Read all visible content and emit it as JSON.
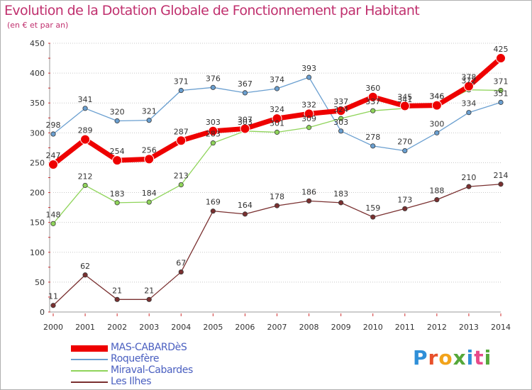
{
  "title": "Evolution de la Dotation Globale de Fonctionnement par Habitant",
  "subtitle": "(en € et par an)",
  "brand": {
    "text": "Proxiti",
    "colors": [
      "#2f8fd8",
      "#e8502a",
      "#f2a31a",
      "#55a83a",
      "#2f8fd8",
      "#e84a8a",
      "#55a83a"
    ]
  },
  "chart_data": {
    "type": "line",
    "title": "Evolution de la Dotation Globale de Fonctionnement par Habitant",
    "subtitle": "(en € et par an)",
    "x": [
      "2000",
      "2001",
      "2002",
      "2003",
      "2004",
      "2005",
      "2006",
      "2007",
      "2008",
      "2009",
      "2010",
      "2011",
      "2012",
      "2013",
      "2014"
    ],
    "ylim": [
      0,
      450
    ],
    "yticks": [
      0,
      50,
      100,
      150,
      200,
      250,
      300,
      350,
      400,
      450
    ],
    "grid": "horizontal dotted",
    "series": [
      {
        "name": "Roquefère",
        "color": "#6a9fd0",
        "emphasis": false,
        "values": [
          298,
          341,
          320,
          321,
          371,
          376,
          367,
          374,
          393,
          303,
          278,
          270,
          300,
          334,
          351
        ]
      },
      {
        "name": "Miraval-Cabardes",
        "color": "#8fd45a",
        "emphasis": false,
        "values": [
          148,
          212,
          183,
          184,
          213,
          283,
          303,
          301,
          309,
          324,
          337,
          341,
          346,
          372,
          371
        ]
      },
      {
        "name": "Les Ilhes",
        "color": "#7a3030",
        "emphasis": false,
        "values": [
          11,
          62,
          21,
          21,
          67,
          169,
          164,
          178,
          186,
          183,
          159,
          173,
          188,
          210,
          214
        ]
      },
      {
        "name": "MAS-CABARDèS",
        "color": "#ee0000",
        "emphasis": true,
        "values": [
          247,
          289,
          254,
          256,
          287,
          303,
          307,
          324,
          332,
          337,
          360,
          345,
          346,
          378,
          425
        ]
      }
    ],
    "legend": [
      "MAS-CABARDèS",
      "Roquefère",
      "Miraval-Cabardes",
      "Les Ilhes"
    ]
  }
}
